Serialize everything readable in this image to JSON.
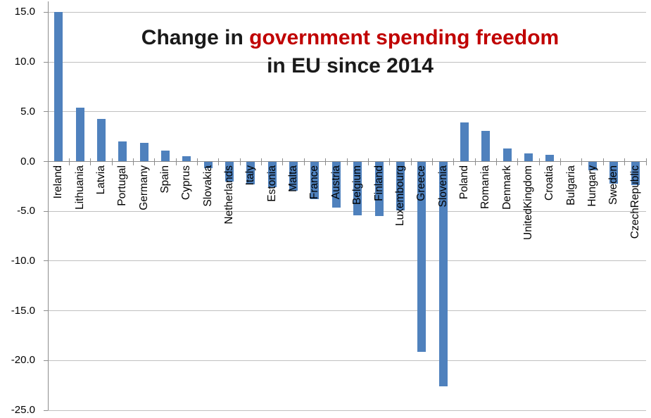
{
  "page": {
    "background": "#ffffff"
  },
  "title": {
    "prefix": "Change in ",
    "highlight": "government spending freedom",
    "line2": "in EU since 2014",
    "prefix_color": "#1a1a1a",
    "highlight_color": "#c00000"
  },
  "chart_data": {
    "type": "bar",
    "title": "Change in government spending freedom in EU since 2014",
    "xlabel": "",
    "ylabel": "",
    "categories": [
      "Ireland",
      "Lithuania",
      "Latvia",
      "Portugal",
      "Germany",
      "Spain",
      "Cyprus",
      "Slovakia",
      "Netherlands",
      "Italy",
      "Estonia",
      "Malta",
      "France",
      "Austria",
      "Belgium",
      "Finland",
      "Luxembourg",
      "Greece",
      "Slovenia",
      "Poland",
      "Romania",
      "Denmark",
      "UnitedKingdom",
      "Croatia",
      "Bulgaria",
      "Hungary",
      "Sweden",
      "CzechRepublic"
    ],
    "values": [
      15.0,
      5.4,
      4.3,
      2.0,
      1.9,
      1.1,
      0.5,
      -0.7,
      -2.0,
      -2.3,
      -2.6,
      -2.9,
      -3.8,
      -4.6,
      -5.4,
      -5.5,
      -4.9,
      -19.1,
      -22.6,
      3.9,
      3.1,
      1.3,
      0.8,
      0.7,
      0.0,
      -0.9,
      -2.2,
      -2.4
    ],
    "ylim": [
      -25,
      15
    ],
    "ytick_step": 5,
    "ytick_labels": [
      "15.0",
      "10.0",
      "5.0",
      "0.0",
      "-5.0",
      "-10.0",
      "-15.0",
      "-20.0",
      "-25.0"
    ],
    "grid": true,
    "legend": "none",
    "bar_color": "#4f81bd",
    "gridline_color": "#c0c0c0",
    "axis_color": "#8c8c8c",
    "tick_label_color": "#000000"
  }
}
